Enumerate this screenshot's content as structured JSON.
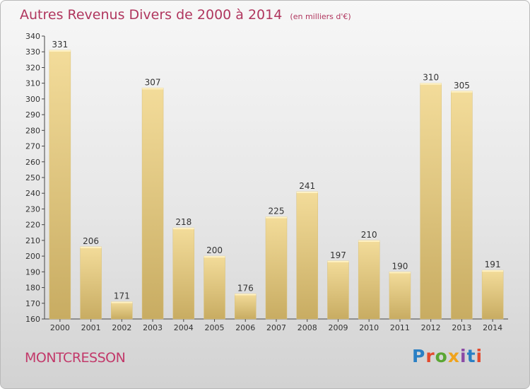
{
  "title": "Autres Revenus Divers de 2000 à 2014",
  "subtitle": "(en milliers d'€)",
  "commune": "MONTCRESSON",
  "logo": "Proxiti",
  "chart_data": {
    "type": "bar",
    "categories": [
      "2000",
      "2001",
      "2002",
      "2003",
      "2004",
      "2005",
      "2006",
      "2007",
      "2008",
      "2009",
      "2010",
      "2011",
      "2012",
      "2013",
      "2014"
    ],
    "values": [
      331,
      206,
      171,
      307,
      218,
      200,
      176,
      225,
      241,
      197,
      210,
      190,
      310,
      305,
      191
    ],
    "ylim": [
      160,
      340
    ],
    "yticks": [
      160,
      170,
      180,
      190,
      200,
      210,
      220,
      230,
      240,
      250,
      260,
      270,
      280,
      290,
      300,
      310,
      320,
      330,
      340
    ],
    "grid": false,
    "bar_color": "#e8cf86",
    "title_color": "#b0365e"
  }
}
